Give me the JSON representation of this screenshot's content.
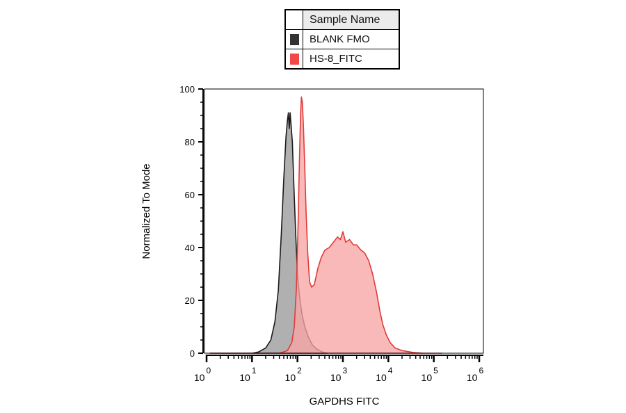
{
  "legend": {
    "header": "Sample Name",
    "entries": [
      {
        "label": "BLANK FMO",
        "color": "#333333"
      },
      {
        "label": "HS-8_FITC",
        "color": "#f44848"
      }
    ]
  },
  "chart_data": {
    "type": "area",
    "title": "",
    "xlabel": "GAPDHS FITC",
    "ylabel": "Normalized To Mode",
    "x_scale": "log",
    "xlim": [
      1,
      1000000
    ],
    "ylim": [
      0,
      100
    ],
    "y_ticks": [
      0,
      20,
      40,
      60,
      80,
      100
    ],
    "x_ticks": [
      {
        "base": "10",
        "exp": "0",
        "value": 1
      },
      {
        "base": "10",
        "exp": "1",
        "value": 10
      },
      {
        "base": "10",
        "exp": "2",
        "value": 100
      },
      {
        "base": "10",
        "exp": "3",
        "value": 1000
      },
      {
        "base": "10",
        "exp": "4",
        "value": 10000
      },
      {
        "base": "10",
        "exp": "5",
        "value": 100000
      },
      {
        "base": "10",
        "exp": "6",
        "value": 1000000
      }
    ],
    "grid": false,
    "legend_position": "top-center",
    "series": [
      {
        "name": "BLANK FMO",
        "fill": "#9a9a9a",
        "stroke": "#1a1a1a",
        "points": [
          [
            1.2,
            0
          ],
          [
            10,
            0
          ],
          [
            14,
            0.5
          ],
          [
            20,
            2
          ],
          [
            26,
            5
          ],
          [
            32,
            12
          ],
          [
            38,
            24
          ],
          [
            44,
            45
          ],
          [
            50,
            66
          ],
          [
            56,
            82
          ],
          [
            60,
            88
          ],
          [
            63,
            91
          ],
          [
            66,
            85
          ],
          [
            69,
            91
          ],
          [
            72,
            87
          ],
          [
            77,
            80
          ],
          [
            84,
            62
          ],
          [
            92,
            44
          ],
          [
            100,
            30
          ],
          [
            110,
            22
          ],
          [
            125,
            15
          ],
          [
            145,
            10
          ],
          [
            175,
            6
          ],
          [
            215,
            3
          ],
          [
            270,
            1.5
          ],
          [
            350,
            0.5
          ],
          [
            450,
            0
          ]
        ]
      },
      {
        "name": "HS-8_FITC",
        "fill": "#f9a5a5",
        "stroke": "#e03a3a",
        "points": [
          [
            1.2,
            0
          ],
          [
            40,
            0
          ],
          [
            60,
            1
          ],
          [
            75,
            4
          ],
          [
            85,
            10
          ],
          [
            95,
            25
          ],
          [
            103,
            48
          ],
          [
            110,
            72
          ],
          [
            117,
            90
          ],
          [
            122,
            97
          ],
          [
            128,
            95
          ],
          [
            135,
            86
          ],
          [
            145,
            70
          ],
          [
            155,
            53
          ],
          [
            168,
            38
          ],
          [
            185,
            27
          ],
          [
            205,
            25
          ],
          [
            235,
            26
          ],
          [
            280,
            32
          ],
          [
            330,
            36
          ],
          [
            400,
            39
          ],
          [
            500,
            40
          ],
          [
            620,
            42
          ],
          [
            760,
            44
          ],
          [
            880,
            43
          ],
          [
            1000,
            46
          ],
          [
            1150,
            42
          ],
          [
            1400,
            43
          ],
          [
            1700,
            41
          ],
          [
            2000,
            41
          ],
          [
            2500,
            39
          ],
          [
            3000,
            38
          ],
          [
            3700,
            35
          ],
          [
            4500,
            30
          ],
          [
            5500,
            23
          ],
          [
            6500,
            16
          ],
          [
            7500,
            11
          ],
          [
            9000,
            7
          ],
          [
            11000,
            4
          ],
          [
            14000,
            2
          ],
          [
            20000,
            1
          ],
          [
            35000,
            0.3
          ],
          [
            60000,
            0
          ],
          [
            150000,
            0
          ]
        ]
      }
    ]
  }
}
